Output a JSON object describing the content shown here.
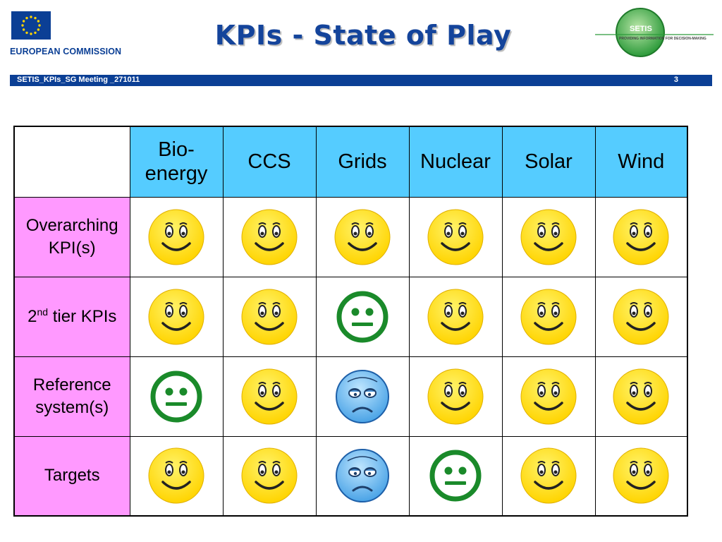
{
  "header": {
    "org": "EUROPEAN COMMISSION",
    "title": "KPIs - State of Play",
    "setis_logo": {
      "name": "SETIS",
      "tagline": "PROVIDING INFORMATION FOR DECISION-MAKING"
    }
  },
  "banner": {
    "meeting": "SETIS_KPIs_SG Meeting _271011",
    "page_number": "3"
  },
  "table": {
    "columns": [
      "Bio-\nenergy",
      "CCS",
      "Grids",
      "Nuclear",
      "Solar",
      "Wind"
    ],
    "rows": [
      {
        "label": "Overarching KPI(s)",
        "status": [
          "happy",
          "happy",
          "happy",
          "happy",
          "happy",
          "happy"
        ]
      },
      {
        "label_base": "2",
        "label_sup": "nd",
        "label_rest": " tier KPIs",
        "status": [
          "happy",
          "happy",
          "neutral",
          "happy",
          "happy",
          "happy"
        ]
      },
      {
        "label": "Reference system(s)",
        "status": [
          "neutral",
          "happy",
          "sad",
          "happy",
          "happy",
          "happy"
        ]
      },
      {
        "label": "Targets",
        "status": [
          "happy",
          "happy",
          "sad",
          "neutral",
          "happy",
          "happy"
        ]
      }
    ]
  },
  "colors": {
    "happy": "#ffd400",
    "neutral": "#1a8a2a",
    "sad": "#4aa3e6",
    "header_fill": "#55ccff",
    "row_fill": "#ff99ff"
  },
  "icons": {
    "happy": "smiley-happy-icon",
    "neutral": "smiley-neutral-icon",
    "sad": "smiley-sad-icon"
  }
}
